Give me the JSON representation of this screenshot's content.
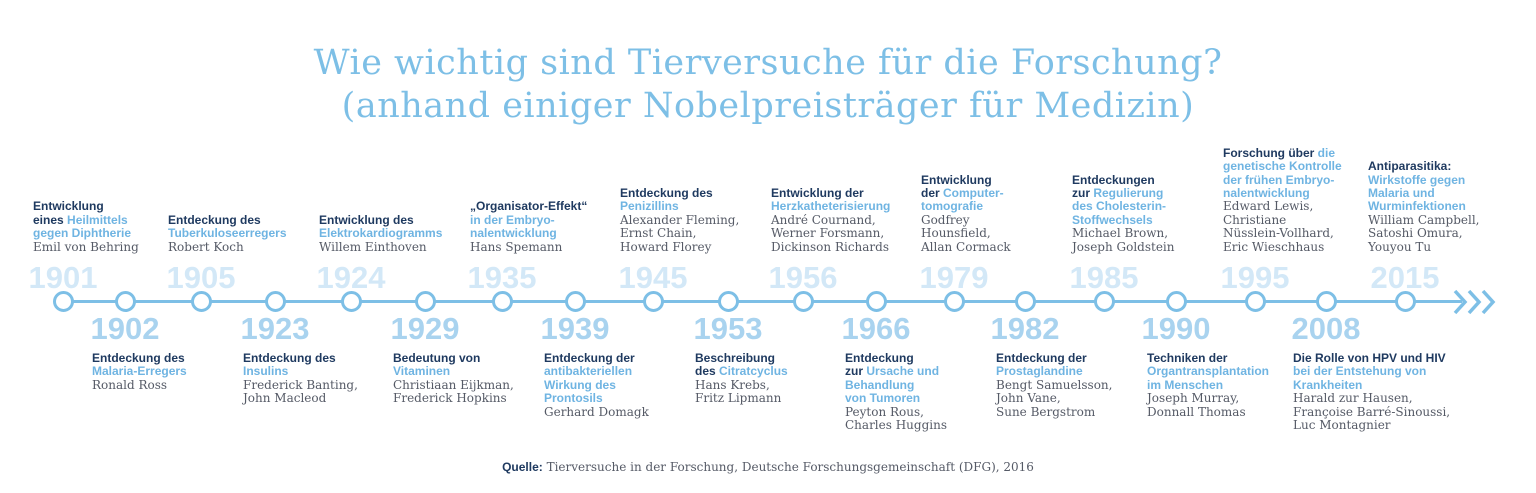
{
  "title": {
    "line1": "Wie wichtig sind Tierversuche für die Forschung?",
    "line2": "(anhand einiger Nobelpreisträger für Medizin)"
  },
  "colors": {
    "accent": "#7dbfe6",
    "heading_dark": "#1f3a60",
    "heading_light": "#6fb4e2",
    "text": "#555a66"
  },
  "timeline": [
    {
      "year": "1901",
      "position": "top",
      "heading": [
        [
          "d",
          "Entwicklung"
        ],
        [
          "br"
        ],
        [
          "d",
          "eines "
        ],
        [
          "a",
          "Heilmittels"
        ],
        [
          "br"
        ],
        [
          "a",
          "gegen Diphtherie"
        ]
      ],
      "names": [
        "Emil von Behring"
      ]
    },
    {
      "year": "1902",
      "position": "bottom",
      "heading": [
        [
          "d",
          "Entdeckung des"
        ],
        [
          "br"
        ],
        [
          "a",
          "Malaria-Erregers"
        ]
      ],
      "names": [
        "Ronald Ross"
      ]
    },
    {
      "year": "1905",
      "position": "top",
      "heading": [
        [
          "d",
          "Entdeckung des"
        ],
        [
          "br"
        ],
        [
          "a",
          "Tuberkuloseerregers"
        ]
      ],
      "names": [
        "Robert Koch"
      ]
    },
    {
      "year": "1923",
      "position": "bottom",
      "heading": [
        [
          "d",
          "Entdeckung des"
        ],
        [
          "br"
        ],
        [
          "a",
          "Insulins"
        ]
      ],
      "names": [
        "Frederick Banting,",
        "John Macleod"
      ]
    },
    {
      "year": "1924",
      "position": "top",
      "heading": [
        [
          "d",
          "Entwicklung des"
        ],
        [
          "br"
        ],
        [
          "a",
          "Elektrokardiogramms"
        ]
      ],
      "names": [
        "Willem Einthoven"
      ]
    },
    {
      "year": "1929",
      "position": "bottom",
      "heading": [
        [
          "d",
          "Bedeutung von"
        ],
        [
          "br"
        ],
        [
          "a",
          "Vitaminen"
        ]
      ],
      "names": [
        "Christiaan Eijkman,",
        "Frederick Hopkins"
      ]
    },
    {
      "year": "1935",
      "position": "top",
      "heading": [
        [
          "d",
          "„Organisator-Effekt“"
        ],
        [
          "br"
        ],
        [
          "a",
          "in der Embryo-"
        ],
        [
          "br"
        ],
        [
          "a",
          "nalentwicklung"
        ]
      ],
      "names": [
        "Hans Spemann"
      ]
    },
    {
      "year": "1939",
      "position": "bottom",
      "heading": [
        [
          "d",
          "Entdeckung der"
        ],
        [
          "br"
        ],
        [
          "a",
          "antibakteriellen"
        ],
        [
          "br"
        ],
        [
          "a",
          "Wirkung des"
        ],
        [
          "br"
        ],
        [
          "a",
          "Prontosils"
        ]
      ],
      "names": [
        "Gerhard Domagk"
      ]
    },
    {
      "year": "1945",
      "position": "top",
      "heading": [
        [
          "d",
          "Entdeckung des"
        ],
        [
          "br"
        ],
        [
          "a",
          "Penizillins"
        ]
      ],
      "names": [
        "Alexander Fleming,",
        "Ernst Chain,",
        "Howard Florey"
      ]
    },
    {
      "year": "1953",
      "position": "bottom",
      "heading": [
        [
          "d",
          "Beschreibung"
        ],
        [
          "br"
        ],
        [
          "d",
          "des "
        ],
        [
          "a",
          "Citratcyclus"
        ]
      ],
      "names": [
        "Hans Krebs,",
        "Fritz Lipmann"
      ]
    },
    {
      "year": "1956",
      "position": "top",
      "heading": [
        [
          "d",
          "Entwicklung der"
        ],
        [
          "br"
        ],
        [
          "a",
          "Herzkatheterisierung"
        ]
      ],
      "names": [
        "André Cournand,",
        "Werner Forsmann,",
        "Dickinson Richards"
      ]
    },
    {
      "year": "1966",
      "position": "bottom",
      "heading": [
        [
          "d",
          "Entdeckung"
        ],
        [
          "br"
        ],
        [
          "d",
          "zur "
        ],
        [
          "a",
          "Ursache und"
        ],
        [
          "br"
        ],
        [
          "a",
          "Behandlung"
        ],
        [
          "br"
        ],
        [
          "a",
          "von Tumoren"
        ]
      ],
      "names": [
        "Peyton Rous,",
        "Charles Huggins"
      ]
    },
    {
      "year": "1979",
      "position": "top",
      "heading": [
        [
          "d",
          "Entwicklung"
        ],
        [
          "br"
        ],
        [
          "d",
          "der "
        ],
        [
          "a",
          "Computer-"
        ],
        [
          "br"
        ],
        [
          "a",
          "tomografie"
        ]
      ],
      "names": [
        "Godfrey",
        "Hounsfield,",
        "Allan Cormack"
      ]
    },
    {
      "year": "1982",
      "position": "bottom",
      "heading": [
        [
          "d",
          "Entdeckung der"
        ],
        [
          "br"
        ],
        [
          "a",
          "Prostaglandine"
        ]
      ],
      "names": [
        "Bengt Samuelsson,",
        "John Vane,",
        "Sune Bergstrom"
      ]
    },
    {
      "year": "1985",
      "position": "top",
      "heading": [
        [
          "d",
          "Entdeckungen"
        ],
        [
          "br"
        ],
        [
          "d",
          "zur "
        ],
        [
          "a",
          "Regulierung"
        ],
        [
          "br"
        ],
        [
          "a",
          "des Cholesterin-"
        ],
        [
          "br"
        ],
        [
          "a",
          "Stoffwechsels"
        ]
      ],
      "names": [
        "Michael Brown,",
        "Joseph Goldstein"
      ]
    },
    {
      "year": "1990",
      "position": "bottom",
      "heading": [
        [
          "d",
          "Techniken der"
        ],
        [
          "br"
        ],
        [
          "a",
          "Organtransplantation"
        ],
        [
          "br"
        ],
        [
          "a",
          "im Menschen"
        ]
      ],
      "names": [
        "Joseph Murray,",
        "Donnall Thomas"
      ]
    },
    {
      "year": "1995",
      "position": "top",
      "heading": [
        [
          "d",
          "Forschung über "
        ],
        [
          "a",
          "die"
        ],
        [
          "br"
        ],
        [
          "a",
          "genetische Kontrolle"
        ],
        [
          "br"
        ],
        [
          "a",
          "der frühen Embryo-"
        ],
        [
          "br"
        ],
        [
          "a",
          "nalentwicklung"
        ]
      ],
      "names": [
        "Edward Lewis,",
        "Christiane",
        "Nüsslein-Vollhard,",
        "Eric Wieschhaus"
      ]
    },
    {
      "year": "2008",
      "position": "bottom",
      "heading": [
        [
          "d",
          "Die Rolle von HPV und HIV"
        ],
        [
          "br"
        ],
        [
          "a",
          "bei der Entstehung von"
        ],
        [
          "br"
        ],
        [
          "a",
          "Krankheiten"
        ]
      ],
      "names": [
        "Harald zur Hausen,",
        "Françoise Barré-Sinoussi,",
        "Luc Montagnier"
      ]
    },
    {
      "year": "2015",
      "position": "top",
      "heading": [
        [
          "d",
          "Antiparasitika:"
        ],
        [
          "br"
        ],
        [
          "a",
          "Wirkstoffe gegen"
        ],
        [
          "br"
        ],
        [
          "a",
          "Malaria und"
        ],
        [
          "br"
        ],
        [
          "a",
          "Wurminfektionen"
        ]
      ],
      "names": [
        "William Campbell,",
        "Satoshi Omura,",
        "Youyou Tu"
      ]
    }
  ],
  "source": {
    "label": "Quelle:",
    "text": " Tierversuche in der Forschung, Deutsche Forschungsgemeinschaft (DFG), 2016"
  }
}
